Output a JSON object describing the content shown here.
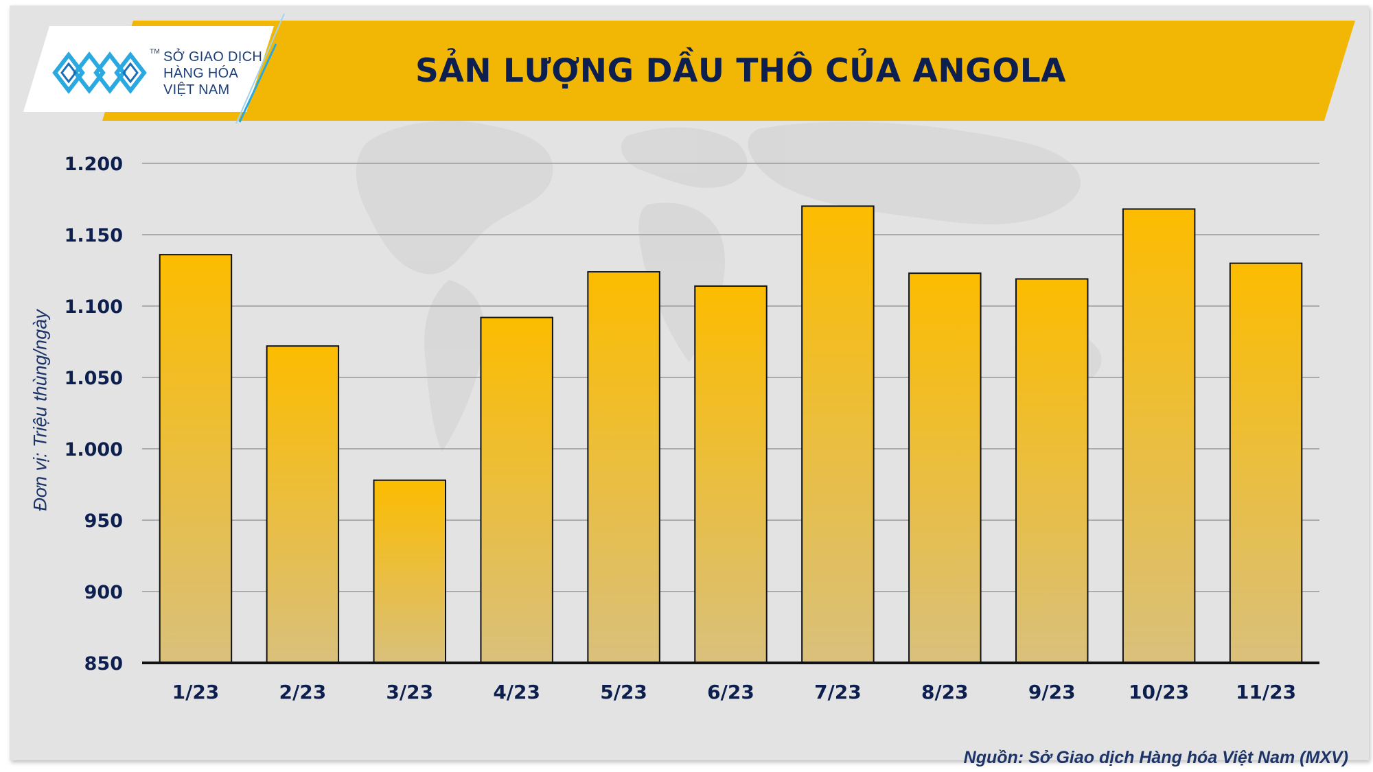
{
  "brand": {
    "line1": "SỞ GIAO DỊCH",
    "line2": "HÀNG HÓA",
    "line3": "VIỆT NAM",
    "tm": "TM",
    "logo_icon": "mxv-logo-icon"
  },
  "colors": {
    "band": "#f2b705",
    "bar_top": "#fcbc00",
    "bar_bottom": "#d9c07c",
    "text": "#0d1f4f"
  },
  "source_note": "Nguồn: Sở Giao dịch Hàng hóa Việt Nam (MXV)",
  "chart_data": {
    "type": "bar",
    "title": "SẢN LƯỢNG DẦU THÔ CỦA ANGOLA",
    "ylabel": "Đơn vị: Triệu thùng/ngày",
    "xlabel": "",
    "ylim": [
      850,
      1200
    ],
    "yticks": [
      850,
      900,
      950,
      1000,
      1050,
      1100,
      1150,
      1200
    ],
    "ytick_labels": [
      "850",
      "900",
      "950",
      "1.000",
      "1.050",
      "1.100",
      "1.150",
      "1.200"
    ],
    "grid": true,
    "categories": [
      "1/23",
      "2/23",
      "3/23",
      "4/23",
      "5/23",
      "6/23",
      "7/23",
      "8/23",
      "9/23",
      "10/23",
      "11/23"
    ],
    "values": [
      1136,
      1072,
      978,
      1092,
      1124,
      1114,
      1170,
      1123,
      1119,
      1168,
      1130
    ]
  }
}
